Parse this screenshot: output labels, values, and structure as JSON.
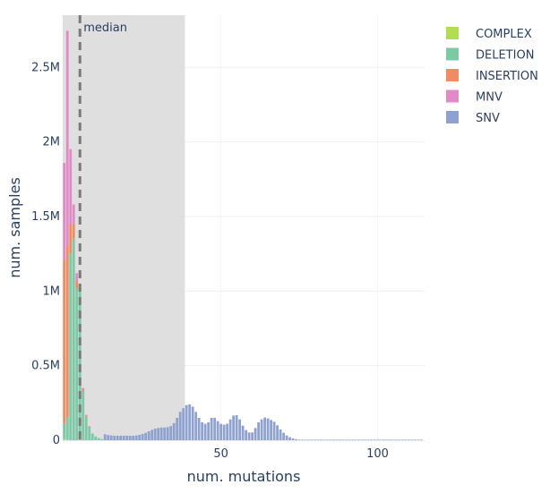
{
  "chart_data": {
    "type": "bar",
    "barmode": "stack",
    "xlabel": "num. mutations",
    "ylabel": "num. samples",
    "xlim": [
      -0.5,
      115
    ],
    "ylim": [
      0,
      2850000
    ],
    "x_ticks": [
      50,
      100
    ],
    "y_ticks": [
      0,
      500000,
      1000000,
      1500000,
      2000000,
      2500000
    ],
    "y_tick_labels": [
      "0",
      "0.5M",
      "1M",
      "1.5M",
      "2M",
      "2.5M"
    ],
    "grid": true,
    "legend_position": "top-right",
    "median": 5,
    "median_label": "median",
    "shaded_range": [
      0,
      38.5
    ],
    "series": [
      {
        "name": "COMPLEX",
        "color": "#b0dd52",
        "x": [
          0,
          1,
          2,
          3
        ],
        "values": [
          10000,
          5000,
          2000,
          1000
        ]
      },
      {
        "name": "DELETION",
        "color": "#7cc9a5",
        "x": [
          0,
          1,
          2,
          3,
          4,
          5,
          6,
          7,
          8,
          9,
          10,
          11,
          12
        ],
        "values": [
          100000,
          150000,
          1250000,
          1350000,
          1020000,
          1000000,
          330000,
          160000,
          90000,
          45000,
          25000,
          15000,
          8000
        ]
      },
      {
        "name": "INSERTION",
        "color": "#f08c62",
        "x": [
          0,
          1,
          2,
          3,
          4,
          5,
          6,
          7,
          8
        ],
        "values": [
          1100000,
          1150000,
          200000,
          100000,
          50000,
          25000,
          12000,
          6000,
          3000
        ]
      },
      {
        "name": "MNV",
        "color": "#e18ac7",
        "x": [
          0,
          1,
          2,
          3,
          4,
          5,
          6,
          7
        ],
        "values": [
          650000,
          1440000,
          500000,
          130000,
          50000,
          20000,
          8000,
          3000
        ]
      },
      {
        "name": "SNV",
        "color": "#8fa2cf",
        "x": [
          0,
          1,
          2,
          3,
          4,
          5,
          6,
          7,
          8,
          9,
          10,
          11,
          12,
          13,
          14,
          15,
          16,
          17,
          18,
          19,
          20,
          21,
          22,
          23,
          24,
          25,
          26,
          27,
          28,
          29,
          30,
          31,
          32,
          33,
          34,
          35,
          36,
          37,
          38,
          39,
          40,
          41,
          42,
          43,
          44,
          45,
          46,
          47,
          48,
          49,
          50,
          51,
          52,
          53,
          54,
          55,
          56,
          57,
          58,
          59,
          60,
          61,
          62,
          63,
          64,
          65,
          66,
          67,
          68,
          69,
          70,
          71,
          72,
          73,
          74,
          75,
          76,
          77,
          78,
          79,
          80,
          81,
          82,
          83,
          84,
          85,
          86,
          87,
          88,
          89,
          90,
          91,
          92,
          93,
          94,
          95,
          96,
          97,
          98,
          99,
          100,
          101,
          102,
          103,
          104,
          105,
          106,
          107,
          108,
          109,
          110,
          111,
          112,
          113,
          114
        ],
        "values": [
          0,
          0,
          0,
          0,
          0,
          0,
          0,
          0,
          0,
          0,
          0,
          0,
          0,
          40000,
          35000,
          32000,
          30000,
          30000,
          30000,
          30000,
          30000,
          30000,
          30000,
          32000,
          36000,
          42000,
          50000,
          60000,
          70000,
          78000,
          82000,
          85000,
          85000,
          88000,
          95000,
          115000,
          150000,
          190000,
          215000,
          235000,
          240000,
          225000,
          190000,
          150000,
          120000,
          110000,
          120000,
          150000,
          150000,
          128000,
          110000,
          104000,
          110000,
          140000,
          165000,
          168000,
          140000,
          98000,
          68000,
          52000,
          52000,
          82000,
          120000,
          140000,
          152000,
          146000,
          136000,
          124000,
          100000,
          72000,
          50000,
          32000,
          20000,
          12000,
          7000,
          4000,
          2000,
          1000,
          500,
          300,
          200,
          150,
          100,
          80,
          60,
          50,
          40,
          30,
          25,
          20,
          15,
          12,
          10,
          8,
          6,
          5,
          4,
          3,
          3,
          2,
          2,
          2,
          2,
          1,
          1,
          1,
          1,
          1,
          1,
          1,
          1,
          1,
          1,
          1,
          1
        ]
      }
    ]
  }
}
